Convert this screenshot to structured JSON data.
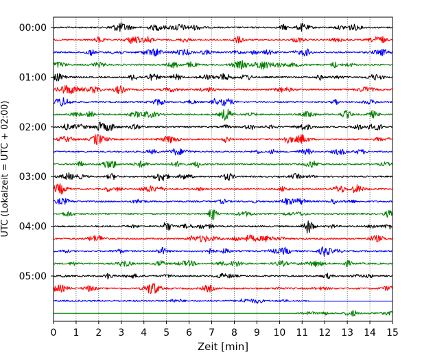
{
  "chart_data": {
    "type": "line",
    "title": "",
    "xlabel": "Zeit  [min]",
    "ylabel": "UTC (Lokalzeit = UTC + 02:00)",
    "xlim": [
      0,
      15
    ],
    "x_ticks": [
      "0",
      "1",
      "2",
      "3",
      "4",
      "5",
      "6",
      "7",
      "8",
      "9",
      "10",
      "11",
      "12",
      "13",
      "14",
      "15"
    ],
    "y_ticks": [
      {
        "label": "00:00",
        "row": 0
      },
      {
        "label": "01:00",
        "row": 4
      },
      {
        "label": "02:00",
        "row": 8
      },
      {
        "label": "03:00",
        "row": 12
      },
      {
        "label": "04:00",
        "row": 16
      },
      {
        "label": "05:00",
        "row": 20
      }
    ],
    "grid": "vertical-dotted",
    "row_minutes": 15,
    "row_count": 24,
    "row_colors": [
      "#000000",
      "#ff0000",
      "#0000ff",
      "#008000"
    ],
    "special_rows": [
      {
        "row": 22,
        "signal_end_min": 11.3
      },
      {
        "row": 23,
        "signal_start_min": 10.7
      }
    ]
  }
}
